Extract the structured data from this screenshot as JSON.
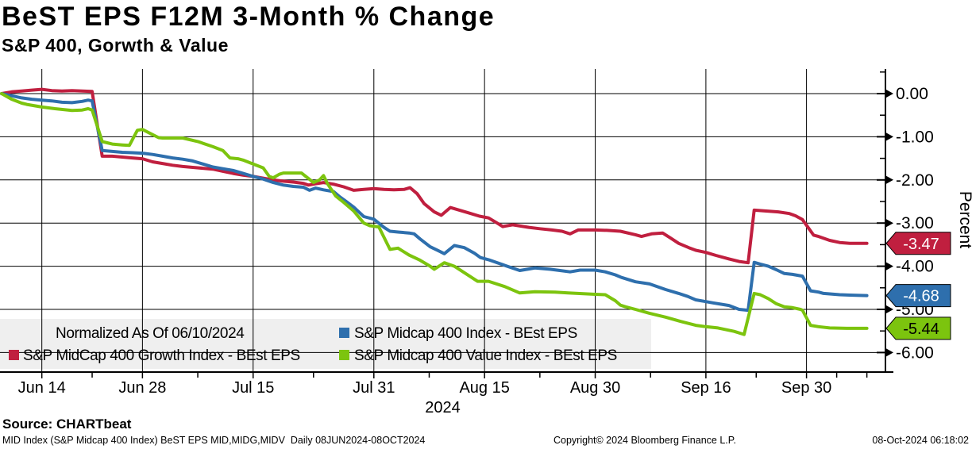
{
  "header": {
    "title": "BeST EPS F12M 3-Month % Change",
    "subtitle": "S&P 400, Gorwth & Value"
  },
  "legend": {
    "background_color": "#efefef",
    "normalized_note": "Normalized As Of 06/10/2024",
    "items": [
      {
        "label": "S&P Midcap 400 Index - BEst EPS",
        "color": "#2e6fad"
      },
      {
        "label": "S&P MidCap 400 Growth Index - BEst EPS",
        "color": "#c01f3f"
      },
      {
        "label": "S&P Midcap 400 Value Index - BEst EPS",
        "color": "#7cc40e"
      }
    ]
  },
  "footer": {
    "source": "Source: CHARTbeat",
    "description": "MID Index (S&P Midcap 400 Index) BeST EPS MID,MIDG,MIDV  Daily 08JUN2024-08OCT2024",
    "copyright": "Copyright© 2024 Bloomberg Finance L.P.",
    "timestamp": "08-Oct-2024 06:18:02"
  },
  "chart_data": {
    "type": "line",
    "title": "BeST EPS F12M 3-Month % Change",
    "subtitle": "S&P 400, Gorwth & Value",
    "xlabel": "2024",
    "ylabel": "Percent",
    "grid": true,
    "legend_position": "bottom-left",
    "x_unit": "business-day index from 06/10/2024",
    "x_range": [
      0,
      86
    ],
    "ylim": [
      -6.49,
      0.55
    ],
    "x_ticks": [
      {
        "label": "Jun 14",
        "day": 4
      },
      {
        "label": "Jun 28",
        "day": 14
      },
      {
        "label": "Jul 15",
        "day": 25
      },
      {
        "label": "Jul 31",
        "day": 37
      },
      {
        "label": "Aug 15",
        "day": 48
      },
      {
        "label": "Aug 30",
        "day": 59
      },
      {
        "label": "Sep 16",
        "day": 70
      },
      {
        "label": "Sep 30",
        "day": 80
      }
    ],
    "x_minor_tick_days": [
      9,
      19.5,
      31,
      42.5,
      53.5,
      64.5,
      75,
      83,
      86
    ],
    "x_year_label": "2024",
    "y_ticks": [
      {
        "label": "0.00",
        "value": 0
      },
      {
        "label": "-1.00",
        "value": -1
      },
      {
        "label": "-2.00",
        "value": -2
      },
      {
        "label": "-3.00",
        "value": -3
      },
      {
        "label": "-4.00",
        "value": -4
      },
      {
        "label": "-5.00",
        "value": -5
      },
      {
        "label": "-6.00",
        "value": -6
      }
    ],
    "y_minor_tick_values": [
      0.5,
      -0.5,
      -1.5,
      -2.5,
      -3.5,
      -4.5,
      -5.5
    ],
    "series": [
      {
        "name": "S&P MidCap 400 Growth Index - BEst EPS",
        "color": "#c01f3f",
        "end_label": "-3.47",
        "end_label_text_color": "#ffffff",
        "points": [
          [
            0,
            0
          ],
          [
            1,
            0.04
          ],
          [
            2,
            0.06
          ],
          [
            3,
            0.08
          ],
          [
            4,
            0.1
          ],
          [
            5,
            0.07
          ],
          [
            6,
            0.06
          ],
          [
            7,
            0.07
          ],
          [
            8,
            0.06
          ],
          [
            9,
            0.05
          ],
          [
            10,
            -1.45
          ],
          [
            11,
            -1.45
          ],
          [
            12,
            -1.47
          ],
          [
            13,
            -1.49
          ],
          [
            14,
            -1.51
          ],
          [
            15,
            -1.58
          ],
          [
            16,
            -1.62
          ],
          [
            17,
            -1.66
          ],
          [
            18,
            -1.69
          ],
          [
            19,
            -1.71
          ],
          [
            20,
            -1.73
          ],
          [
            21,
            -1.75
          ],
          [
            22,
            -1.8
          ],
          [
            23,
            -1.85
          ],
          [
            24,
            -1.89
          ],
          [
            25,
            -1.92
          ],
          [
            26,
            -1.96
          ],
          [
            27,
            -2
          ],
          [
            28,
            -2.03
          ],
          [
            29,
            -2.05
          ],
          [
            30,
            -2.08
          ],
          [
            30.5,
            -2.12
          ],
          [
            31.2,
            -2.09
          ],
          [
            32,
            -2.06
          ],
          [
            33,
            -2.1
          ],
          [
            34,
            -2.16
          ],
          [
            35,
            -2.24
          ],
          [
            36,
            -2.22
          ],
          [
            37,
            -2.2
          ],
          [
            38,
            -2.22
          ],
          [
            39,
            -2.23
          ],
          [
            40,
            -2.22
          ],
          [
            40.6,
            -2.18
          ],
          [
            41.3,
            -2.32
          ],
          [
            42,
            -2.55
          ],
          [
            43,
            -2.74
          ],
          [
            43.7,
            -2.82
          ],
          [
            44.6,
            -2.64
          ],
          [
            45.5,
            -2.7
          ],
          [
            46.5,
            -2.77
          ],
          [
            47.5,
            -2.84
          ],
          [
            48.4,
            -2.88
          ],
          [
            49.4,
            -3.02
          ],
          [
            49.8,
            -3.08
          ],
          [
            50.8,
            -3.04
          ],
          [
            52.4,
            -3.1
          ],
          [
            53.5,
            -3.13
          ],
          [
            54.7,
            -3.16
          ],
          [
            55.7,
            -3.19
          ],
          [
            56.5,
            -3.25
          ],
          [
            57.3,
            -3.16
          ],
          [
            59,
            -3.16
          ],
          [
            60.2,
            -3.17
          ],
          [
            61.5,
            -3.19
          ],
          [
            63,
            -3.27
          ],
          [
            63.6,
            -3.31
          ],
          [
            64.6,
            -3.25
          ],
          [
            65.7,
            -3.23
          ],
          [
            66.5,
            -3.35
          ],
          [
            67.3,
            -3.47
          ],
          [
            68.3,
            -3.57
          ],
          [
            69,
            -3.63
          ],
          [
            70,
            -3.68
          ],
          [
            71,
            -3.75
          ],
          [
            72.3,
            -3.83
          ],
          [
            73.3,
            -3.89
          ],
          [
            74.2,
            -3.92
          ],
          [
            74.8,
            -2.7
          ],
          [
            76,
            -2.72
          ],
          [
            77.2,
            -2.74
          ],
          [
            78.3,
            -2.78
          ],
          [
            78.9,
            -2.83
          ],
          [
            79.6,
            -2.92
          ],
          [
            80.7,
            -3.28
          ],
          [
            81.2,
            -3.31
          ],
          [
            82.3,
            -3.4
          ],
          [
            83.3,
            -3.45
          ],
          [
            84.3,
            -3.47
          ],
          [
            86,
            -3.47
          ]
        ]
      },
      {
        "name": "S&P Midcap 400 Index - BEst EPS",
        "color": "#2e6fad",
        "end_label": "-4.68",
        "end_label_text_color": "#ffffff",
        "points": [
          [
            0,
            0
          ],
          [
            1,
            -0.05
          ],
          [
            2,
            -0.1
          ],
          [
            3,
            -0.13
          ],
          [
            4,
            -0.15
          ],
          [
            5,
            -0.17
          ],
          [
            6,
            -0.2
          ],
          [
            7,
            -0.21
          ],
          [
            8,
            -0.18
          ],
          [
            8.6,
            -0.15
          ],
          [
            9,
            -0.17
          ],
          [
            10,
            -1.32
          ],
          [
            11,
            -1.34
          ],
          [
            12,
            -1.36
          ],
          [
            13,
            -1.37
          ],
          [
            14,
            -1.38
          ],
          [
            15,
            -1.41
          ],
          [
            16,
            -1.45
          ],
          [
            17,
            -1.49
          ],
          [
            18,
            -1.52
          ],
          [
            19,
            -1.56
          ],
          [
            20,
            -1.63
          ],
          [
            21,
            -1.7
          ],
          [
            22,
            -1.74
          ],
          [
            23,
            -1.78
          ],
          [
            24,
            -1.85
          ],
          [
            25,
            -1.92
          ],
          [
            26,
            -1.98
          ],
          [
            27,
            -2.06
          ],
          [
            28,
            -2.12
          ],
          [
            29,
            -2.15
          ],
          [
            30,
            -2.17
          ],
          [
            30.6,
            -2.24
          ],
          [
            31.2,
            -2.19
          ],
          [
            32,
            -2.23
          ],
          [
            33,
            -2.27
          ],
          [
            33.6,
            -2.39
          ],
          [
            34.2,
            -2.49
          ],
          [
            35,
            -2.63
          ],
          [
            36,
            -2.85
          ],
          [
            37,
            -2.91
          ],
          [
            38,
            -3.1
          ],
          [
            38.6,
            -3.19
          ],
          [
            39.5,
            -3.21
          ],
          [
            40.5,
            -3.23
          ],
          [
            41,
            -3.25
          ],
          [
            41.6,
            -3.37
          ],
          [
            42.6,
            -3.55
          ],
          [
            43.5,
            -3.65
          ],
          [
            44,
            -3.71
          ],
          [
            45,
            -3.52
          ],
          [
            46,
            -3.57
          ],
          [
            47,
            -3.7
          ],
          [
            47.6,
            -3.8
          ],
          [
            48.4,
            -3.85
          ],
          [
            50,
            -3.98
          ],
          [
            51.5,
            -4.1
          ],
          [
            52.5,
            -4.06
          ],
          [
            53,
            -4.04
          ],
          [
            54.5,
            -4.07
          ],
          [
            55.5,
            -4.1
          ],
          [
            56.5,
            -4.13
          ],
          [
            57.5,
            -4.09
          ],
          [
            59,
            -4.09
          ],
          [
            60,
            -4.13
          ],
          [
            61,
            -4.2
          ],
          [
            61.6,
            -4.26
          ],
          [
            63,
            -4.36
          ],
          [
            64.4,
            -4.41
          ],
          [
            66,
            -4.54
          ],
          [
            67.3,
            -4.63
          ],
          [
            68.2,
            -4.7
          ],
          [
            69,
            -4.78
          ],
          [
            70,
            -4.82
          ],
          [
            70.7,
            -4.85
          ],
          [
            72.3,
            -4.91
          ],
          [
            73.3,
            -5
          ],
          [
            74.2,
            -5.02
          ],
          [
            74.8,
            -3.91
          ],
          [
            75.4,
            -3.95
          ],
          [
            76.2,
            -4
          ],
          [
            77,
            -4.08
          ],
          [
            77.8,
            -4.17
          ],
          [
            78.6,
            -4.19
          ],
          [
            79.6,
            -4.23
          ],
          [
            80.4,
            -4.57
          ],
          [
            81.2,
            -4.6
          ],
          [
            81.7,
            -4.63
          ],
          [
            83.3,
            -4.66
          ],
          [
            84.3,
            -4.67
          ],
          [
            86,
            -4.68
          ]
        ]
      },
      {
        "name": "S&P Midcap 400 Value Index - BEst EPS",
        "color": "#7cc40e",
        "end_label": "-5.44",
        "end_label_text_color": "#000000",
        "points": [
          [
            0,
            0
          ],
          [
            1,
            -0.13
          ],
          [
            2,
            -0.22
          ],
          [
            2.5,
            -0.25
          ],
          [
            4,
            -0.31
          ],
          [
            5.3,
            -0.35
          ],
          [
            7,
            -0.39
          ],
          [
            8,
            -0.38
          ],
          [
            8.6,
            -0.35
          ],
          [
            9,
            -0.38
          ],
          [
            10,
            -1.11
          ],
          [
            10.5,
            -1.14
          ],
          [
            11,
            -1.17
          ],
          [
            12,
            -1.19
          ],
          [
            12.7,
            -1.2
          ],
          [
            13.5,
            -0.85
          ],
          [
            14,
            -0.83
          ],
          [
            15,
            -0.95
          ],
          [
            15.6,
            -1.02
          ],
          [
            16,
            -1.03
          ],
          [
            18,
            -1.03
          ],
          [
            19.5,
            -1.11
          ],
          [
            21,
            -1.23
          ],
          [
            22,
            -1.32
          ],
          [
            22.7,
            -1.49
          ],
          [
            23.5,
            -1.51
          ],
          [
            24,
            -1.54
          ],
          [
            25,
            -1.63
          ],
          [
            26,
            -1.72
          ],
          [
            26.6,
            -1.92
          ],
          [
            27,
            -1.95
          ],
          [
            27.6,
            -1.87
          ],
          [
            28,
            -1.84
          ],
          [
            29.8,
            -1.84
          ],
          [
            31,
            -2.06
          ],
          [
            31.6,
            -2
          ],
          [
            32,
            -1.9
          ],
          [
            32.4,
            -2.09
          ],
          [
            33.2,
            -2.37
          ],
          [
            34,
            -2.52
          ],
          [
            35,
            -2.72
          ],
          [
            36,
            -3
          ],
          [
            36.6,
            -3.06
          ],
          [
            37.5,
            -3.09
          ],
          [
            38.6,
            -3.61
          ],
          [
            39.4,
            -3.58
          ],
          [
            40.5,
            -3.74
          ],
          [
            41.5,
            -3.85
          ],
          [
            42.6,
            -4
          ],
          [
            43,
            -4.07
          ],
          [
            44,
            -3.92
          ],
          [
            45,
            -4
          ],
          [
            46,
            -4.15
          ],
          [
            47.3,
            -4.35
          ],
          [
            48.4,
            -4.35
          ],
          [
            50,
            -4.47
          ],
          [
            51.5,
            -4.62
          ],
          [
            53,
            -4.59
          ],
          [
            55,
            -4.6
          ],
          [
            56.3,
            -4.62
          ],
          [
            59,
            -4.65
          ],
          [
            60,
            -4.66
          ],
          [
            61,
            -4.8
          ],
          [
            61.5,
            -4.9
          ],
          [
            62,
            -4.94
          ],
          [
            63,
            -5
          ],
          [
            64.4,
            -5.09
          ],
          [
            66,
            -5.18
          ],
          [
            67.5,
            -5.28
          ],
          [
            69,
            -5.37
          ],
          [
            70,
            -5.4
          ],
          [
            71.2,
            -5.43
          ],
          [
            72.8,
            -5.51
          ],
          [
            73.8,
            -5.58
          ],
          [
            74.8,
            -4.63
          ],
          [
            75.4,
            -4.66
          ],
          [
            76.2,
            -4.75
          ],
          [
            77,
            -4.87
          ],
          [
            77.8,
            -4.94
          ],
          [
            78.6,
            -4.96
          ],
          [
            79.4,
            -5
          ],
          [
            79.6,
            -5.02
          ],
          [
            80.4,
            -5.37
          ],
          [
            81.2,
            -5.4
          ],
          [
            82.3,
            -5.43
          ],
          [
            84,
            -5.44
          ],
          [
            86,
            -5.44
          ]
        ]
      }
    ]
  }
}
